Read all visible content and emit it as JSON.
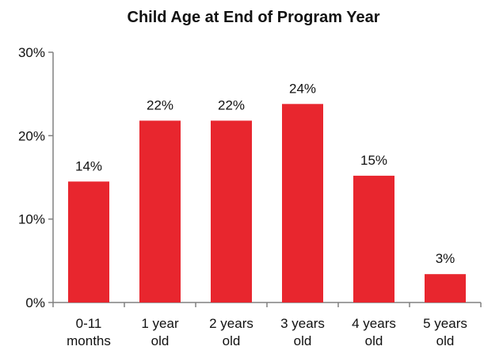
{
  "chart_data": {
    "type": "bar",
    "title": "Child Age at End of Program Year",
    "xlabel": "",
    "ylabel": "",
    "categories": [
      [
        "0-11",
        "months"
      ],
      [
        "1 year",
        "old"
      ],
      [
        "2 years",
        "old"
      ],
      [
        "3 years",
        "old"
      ],
      [
        "4 years",
        "old"
      ],
      [
        "5 years",
        "old"
      ]
    ],
    "values": [
      14,
      22,
      22,
      24,
      15,
      3
    ],
    "plotted_values": [
      14.5,
      21.8,
      21.8,
      23.8,
      15.2,
      3.4
    ],
    "data_labels": [
      "14%",
      "22%",
      "22%",
      "24%",
      "15%",
      "3%"
    ],
    "ylim": [
      0,
      30
    ],
    "yticks": [
      0,
      10,
      20,
      30
    ],
    "ytick_labels": [
      "0%",
      "10%",
      "20%",
      "30%"
    ],
    "grid": false,
    "legend": "none",
    "bar_color": "#e8262e",
    "axis_color": "#808080"
  }
}
